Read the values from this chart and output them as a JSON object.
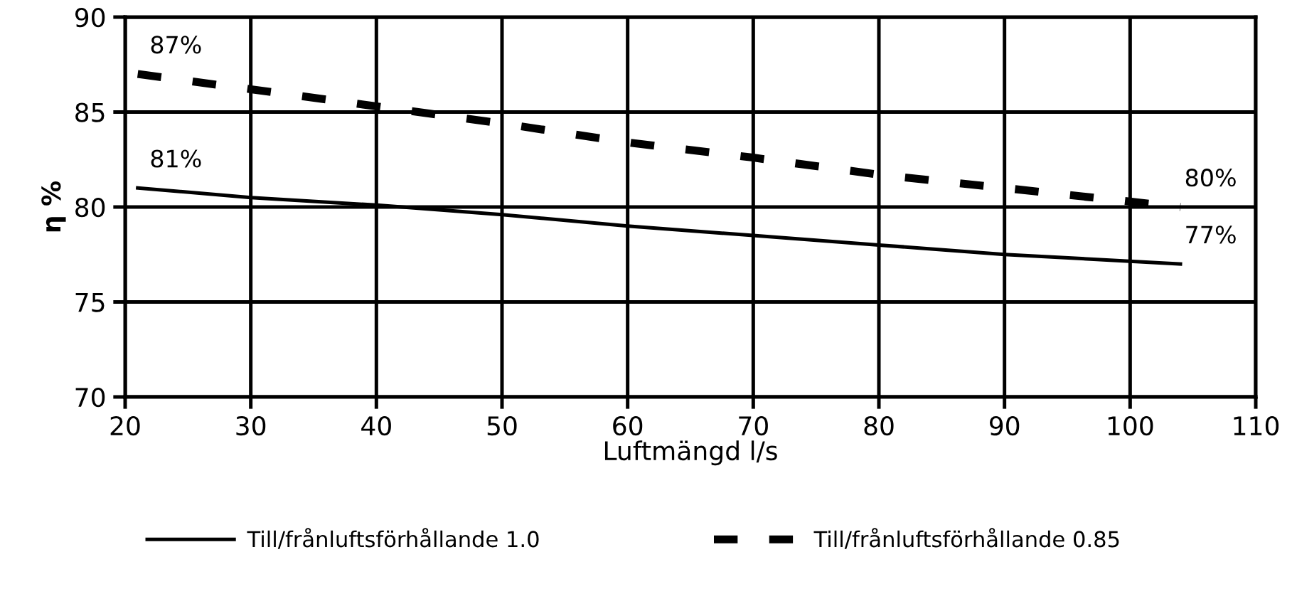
{
  "chart_data": {
    "type": "line",
    "xlabel": "Luftmängd l/s",
    "ylabel": "η %",
    "xlim": [
      20,
      110
    ],
    "xticks": [
      20,
      30,
      40,
      50,
      60,
      70,
      80,
      90,
      100,
      110
    ],
    "ylim": [
      70,
      90
    ],
    "yticks": [
      70,
      75,
      80,
      85,
      90
    ],
    "grid": true,
    "legend": "bottom",
    "marker": "none",
    "series": [
      {
        "name": "Till/frånluftsförhållande 1.0",
        "color": "#000000",
        "line_style": "solid",
        "x": [
          21,
          30,
          40,
          50,
          60,
          70,
          80,
          90,
          104
        ],
        "values": [
          81,
          80.5,
          80.1,
          79.6,
          79.0,
          78.5,
          78.0,
          77.5,
          77
        ],
        "value_labels": [
          "81%",
          null,
          null,
          null,
          null,
          null,
          null,
          null,
          "77%"
        ]
      },
      {
        "name": "Till/frånluftsförhållande 0.85",
        "color": "#000000",
        "line_style": "dashed",
        "x": [
          21,
          30,
          40,
          50,
          60,
          70,
          80,
          90,
          104
        ],
        "values": [
          87,
          86.2,
          85.3,
          84.4,
          83.4,
          82.6,
          81.7,
          81.0,
          80
        ],
        "value_labels": [
          "87%",
          null,
          null,
          null,
          null,
          null,
          null,
          null,
          "80%"
        ]
      }
    ]
  }
}
